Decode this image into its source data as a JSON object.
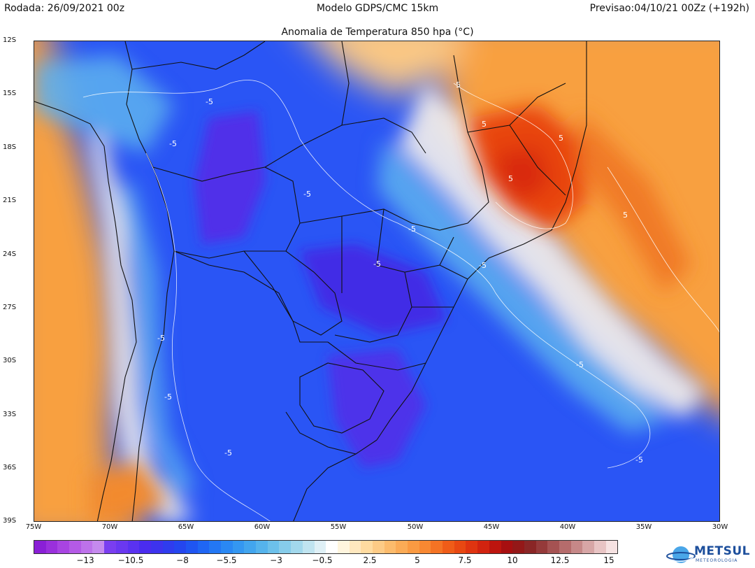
{
  "header": {
    "left": "Rodada: 26/09/2021 00z",
    "center": "Modelo GDPS/CMC 15km",
    "right": "Previsao:04/10/21 00Zz (+192h)"
  },
  "map": {
    "title": "Anomalia de Temperatura 850 hpa (°C)",
    "lat_labels": [
      "12S",
      "15S",
      "18S",
      "21S",
      "24S",
      "27S",
      "30S",
      "33S",
      "36S",
      "39S"
    ],
    "lon_labels": [
      "75W",
      "70W",
      "65W",
      "60W",
      "55W",
      "50W",
      "45W",
      "40W",
      "35W",
      "30W"
    ],
    "contour_labels": [
      "-5",
      "5"
    ],
    "colors": {
      "cold_deep": "#4d1fe0",
      "cold": "#2a55f5",
      "cool": "#55aaf0",
      "warm": "#f8a040",
      "hot": "#e53010"
    }
  },
  "colorbar": {
    "labels": [
      "−13",
      "−10.5",
      "−8",
      "−5.5",
      "−3",
      "−0.5",
      "2.5",
      "5",
      "7.5",
      "10",
      "12.5",
      "15"
    ],
    "colors": [
      "#8a1fd6",
      "#9a30dc",
      "#a844e2",
      "#b45ae6",
      "#bd72ea",
      "#c58aee",
      "#7a3ef0",
      "#6a38f0",
      "#5a32f0",
      "#4a2cef",
      "#3d33ee",
      "#2f3cee",
      "#2446ef",
      "#1f55f2",
      "#1f66f4",
      "#2377f4",
      "#2a88f3",
      "#3497f1",
      "#42a5ee",
      "#55b3ec",
      "#6cc0ea",
      "#86ccea",
      "#a2d8ec",
      "#c0e4f0",
      "#dff0f6",
      "#ffffff",
      "#fff5de",
      "#ffe8bf",
      "#ffdba0",
      "#fdcb86",
      "#fcbb6c",
      "#fbab56",
      "#fa9a42",
      "#f88832",
      "#f47324",
      "#ef5c18",
      "#e84812",
      "#df3410",
      "#d2230f",
      "#bd150e",
      "#a70f10",
      "#941818",
      "#8a2626",
      "#953a3a",
      "#a55252",
      "#b56c6c",
      "#c68888",
      "#d7a6a6",
      "#e8c4c4",
      "#f6e2e2"
    ]
  },
  "logo": {
    "name": "METSUL",
    "sub": "METEOROLOGIA"
  }
}
